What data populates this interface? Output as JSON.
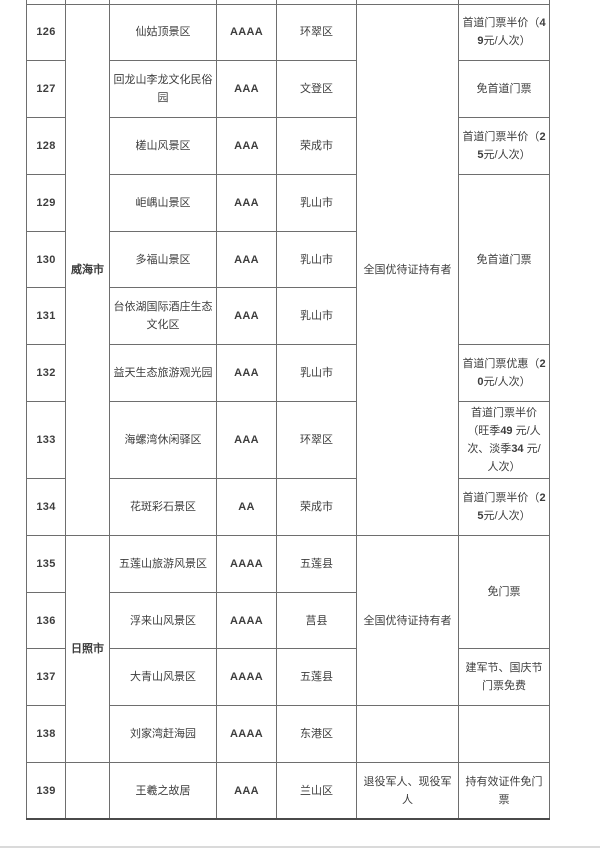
{
  "colors": {
    "border": "#6e6e6e",
    "text": "#3d3d3d",
    "bottom_edge": "#dadada"
  },
  "table": {
    "row_count": 14,
    "rows": [
      {
        "no": "126",
        "name": "仙姑顶景区",
        "grade": "AAAA",
        "district": "环翠区",
        "policy": "首道门票半价（49元/人次）"
      },
      {
        "no": "127",
        "name": "回龙山李龙文化民俗园",
        "grade": "AAA",
        "district": "文登区",
        "policy": "免首道门票"
      },
      {
        "no": "128",
        "name": "槎山风景区",
        "grade": "AAA",
        "district": "荣成市",
        "policy": "首道门票半价（25元/人次）"
      },
      {
        "no": "129",
        "name": "岠嵎山景区",
        "grade": "AAA",
        "district": "乳山市",
        "policy": "免首道门票"
      },
      {
        "no": "130",
        "name": "多福山景区",
        "grade": "AAA",
        "district": "乳山市"
      },
      {
        "no": "131",
        "name": "台依湖国际酒庄生态文化区",
        "grade": "AAA",
        "district": "乳山市"
      },
      {
        "no": "132",
        "name": "益天生态旅游观光园",
        "grade": "AAA",
        "district": "乳山市",
        "policy": "首道门票优惠（20元/人次）"
      },
      {
        "no": "133",
        "name": "海螺湾休闲驿区",
        "grade": "AAA",
        "district": "环翠区",
        "policy": "首道门票半价（旺季49 元/人次、淡季34 元/人次）"
      },
      {
        "no": "134",
        "name": "花斑彩石景区",
        "grade": "AA",
        "district": "荣成市",
        "policy": "首道门票半价（25元/人次）"
      },
      {
        "no": "135",
        "name": "五莲山旅游风景区",
        "grade": "AAAA",
        "district": "五莲县",
        "policy": "免门票"
      },
      {
        "no": "136",
        "name": "浮来山风景区",
        "grade": "AAAA",
        "district": "莒县"
      },
      {
        "no": "137",
        "name": "大青山风景区",
        "grade": "AAAA",
        "district": "五莲县",
        "policy": "建军节、国庆节门票免费"
      },
      {
        "no": "138",
        "name": "刘家湾赶海园",
        "grade": "AAAA",
        "district": "东港区",
        "policy": ""
      },
      {
        "no": "139",
        "name": "王羲之故居",
        "grade": "AAA",
        "district": "兰山区",
        "policy": "持有效证件免门票"
      }
    ],
    "city_merges": [
      {
        "label": "威海市"
      },
      {
        "label": "日照市"
      },
      {
        "label": ""
      }
    ],
    "eligible_merges": [
      {
        "label": "全国优待证持有者"
      },
      {
        "label": "全国优待证持有者"
      },
      {
        "label": ""
      },
      {
        "label": "退役军人、现役军人"
      }
    ]
  }
}
